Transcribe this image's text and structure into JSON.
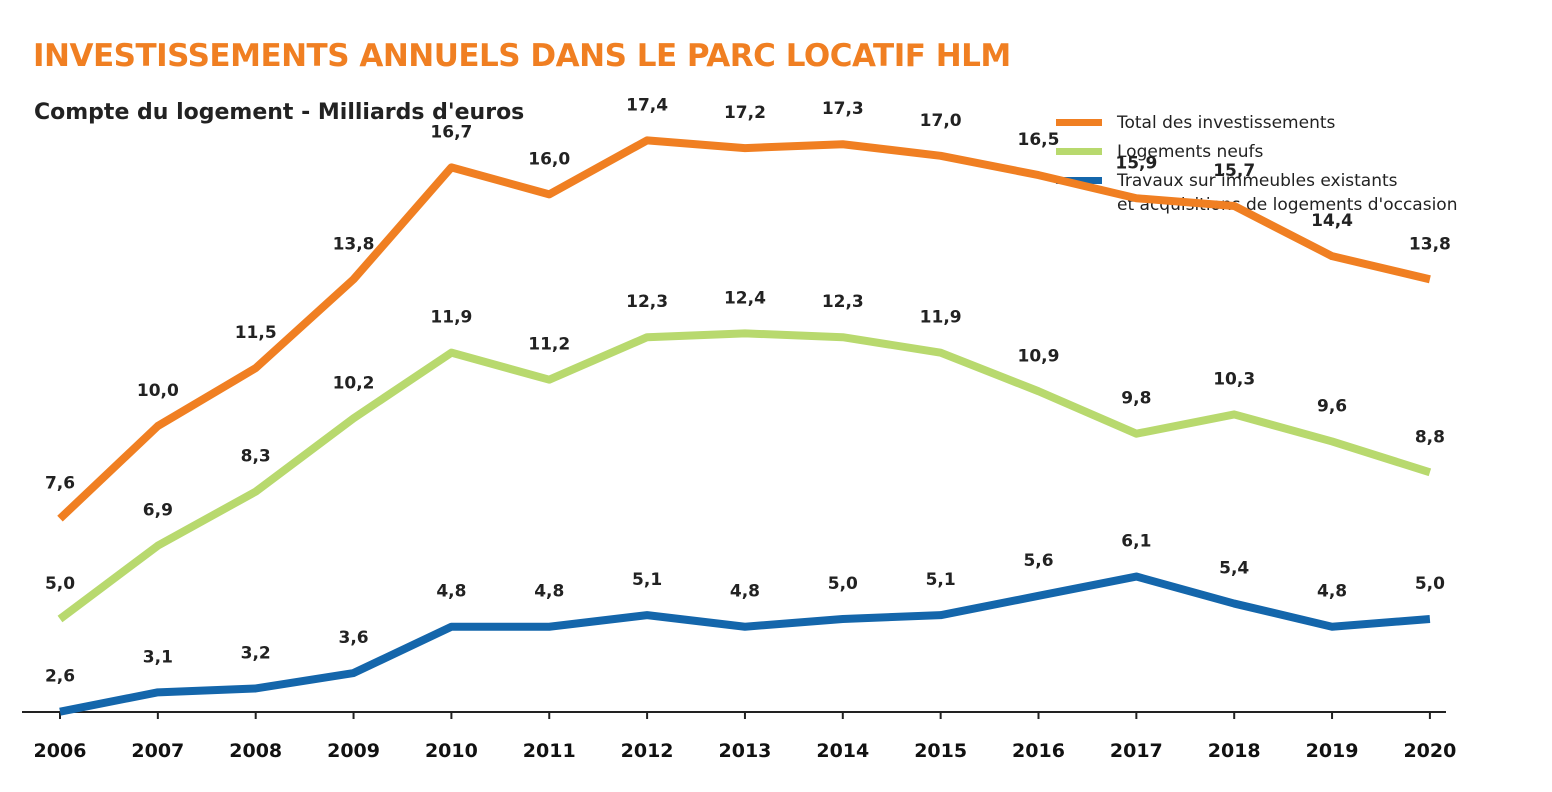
{
  "title": "INVESTISSEMENTS ANNUELS DANS LE PARC LOCATIF HLM",
  "subtitle": "Compte du logement - Milliards d'euros",
  "colors": {
    "title": "#F07F22",
    "total": "#F07F22",
    "neufs": "#B8D96E",
    "travaux": "#1466AB",
    "axis": "#222222"
  },
  "legend": [
    {
      "label": "Total des investissements",
      "color": "#F07F22"
    },
    {
      "label": "Logements neufs",
      "color": "#B8D96E"
    },
    {
      "label": "Travaux sur immeubles existants\net acquisitions de logements d'occasion",
      "color": "#1466AB"
    }
  ],
  "chart_data": {
    "type": "line",
    "title": "INVESTISSEMENTS ANNUELS DANS LE PARC LOCATIF HLM",
    "subtitle": "Compte du logement - Milliards d'euros",
    "x": [
      "2006",
      "2007",
      "2008",
      "2009",
      "2010",
      "2011",
      "2012",
      "2013",
      "2014",
      "2015",
      "2016",
      "2017",
      "2018",
      "2019",
      "2020"
    ],
    "series": [
      {
        "name": "Total des investissements",
        "color": "#F07F22",
        "values": [
          7.6,
          10.0,
          11.5,
          13.8,
          16.7,
          16.0,
          17.4,
          17.2,
          17.3,
          17.0,
          16.5,
          15.9,
          15.7,
          14.4,
          13.8
        ],
        "labels": [
          "7,6",
          "10,0",
          "11,5",
          "13,8",
          "16,7",
          "16,0",
          "17,4",
          "17,2",
          "17,3",
          "17,0",
          "16,5",
          "15,9",
          "15,7",
          "14,4",
          "13,8"
        ]
      },
      {
        "name": "Logements neufs",
        "color": "#B8D96E",
        "values": [
          5.0,
          6.9,
          8.3,
          10.2,
          11.9,
          11.2,
          12.3,
          12.4,
          12.3,
          11.9,
          10.9,
          9.8,
          10.3,
          9.6,
          8.8
        ],
        "labels": [
          "5,0",
          "6,9",
          "8,3",
          "10,2",
          "11,9",
          "11,2",
          "12,3",
          "12,4",
          "12,3",
          "11,9",
          "10,9",
          "9,8",
          "10,3",
          "9,6",
          "8,8"
        ]
      },
      {
        "name": "Travaux sur immeubles existants et acquisitions de logements d'occasion",
        "color": "#1466AB",
        "values": [
          2.6,
          3.1,
          3.2,
          3.6,
          4.8,
          4.8,
          5.1,
          4.8,
          5.0,
          5.1,
          5.6,
          6.1,
          5.4,
          4.8,
          5.0
        ],
        "labels": [
          "2,6",
          "3,1",
          "3,2",
          "3,6",
          "4,8",
          "4,8",
          "5,1",
          "4,8",
          "5,0",
          "5,1",
          "5,6",
          "6,1",
          "5,4",
          "4,8",
          "5,0"
        ]
      }
    ],
    "ylim": [
      0,
      18
    ],
    "grid": false,
    "legend_position": "top-right"
  }
}
